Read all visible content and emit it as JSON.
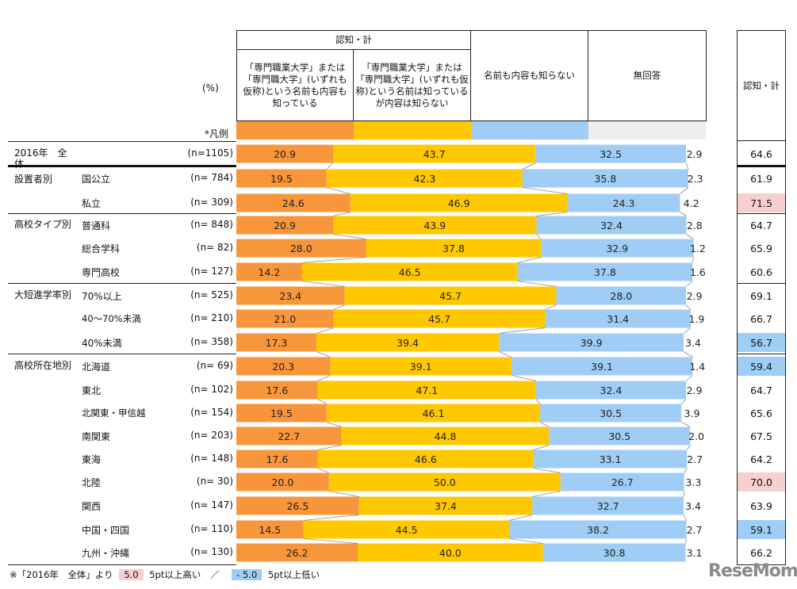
{
  "header": {
    "unit": "(%)",
    "group_label": "認知・計",
    "legend_label": "*凡例",
    "columns": [
      "「専門職業大学」または「専門職大学」(いずれも仮称)という名前も内容も知っている",
      "「専門職業大学」または「専門職大学」(いずれも仮称)という名前は知っているが内容は知らない",
      "名前も内容も知らない",
      "無回答"
    ],
    "total_label": "認知・計"
  },
  "colors": {
    "known_both": "#f7963a",
    "name_only": "#ffc800",
    "unknown": "#9fcdf6",
    "no_answer": "#ededed",
    "high": "#f7cfd0",
    "low": "#9fcdf6"
  },
  "chart_data": {
    "type": "bar",
    "stacked": true,
    "orientation": "horizontal",
    "xlim": [
      0,
      100
    ],
    "series_names": [
      "「専門職業大学」または「専門職大学」(いずれも仮称)という名前も内容も知っている",
      "「専門職業大学」または「専門職大学」(いずれも仮称)という名前は知っているが内容は知らない",
      "名前も内容も知らない",
      "無回答"
    ],
    "rows": [
      {
        "group": "2016年　全体",
        "label": "",
        "n": "(n=1105)",
        "values": [
          20.9,
          43.7,
          32.5,
          2.9
        ],
        "total": "64.6",
        "flag": ""
      },
      {
        "group": "設置者別",
        "label": "国公立",
        "n": "(n=  784)",
        "values": [
          19.5,
          42.3,
          35.8,
          2.3
        ],
        "total": "61.9",
        "flag": ""
      },
      {
        "group": "",
        "label": "私立",
        "n": "(n=  309)",
        "values": [
          24.6,
          46.9,
          24.3,
          4.2
        ],
        "total": "71.5",
        "flag": "high"
      },
      {
        "group": "高校タイプ別",
        "label": "普通科",
        "n": "(n=  848)",
        "values": [
          20.9,
          43.9,
          32.4,
          2.8
        ],
        "total": "64.7",
        "flag": ""
      },
      {
        "group": "",
        "label": "総合学科",
        "n": "(n=    82)",
        "values": [
          28.0,
          37.8,
          32.9,
          1.2
        ],
        "total": "65.9",
        "flag": ""
      },
      {
        "group": "",
        "label": "専門高校",
        "n": "(n=  127)",
        "values": [
          14.2,
          46.5,
          37.8,
          1.6
        ],
        "total": "60.6",
        "flag": ""
      },
      {
        "group": "大短進学率別",
        "label": "70%以上",
        "n": "(n=  525)",
        "values": [
          23.4,
          45.7,
          28.0,
          2.9
        ],
        "total": "69.1",
        "flag": ""
      },
      {
        "group": "",
        "label": "40～70%未満",
        "n": "(n=  210)",
        "values": [
          21.0,
          45.7,
          31.4,
          1.9
        ],
        "total": "66.7",
        "flag": ""
      },
      {
        "group": "",
        "label": "40%未満",
        "n": "(n=  358)",
        "values": [
          17.3,
          39.4,
          39.9,
          3.4
        ],
        "total": "56.7",
        "flag": "low"
      },
      {
        "group": "高校所在地別",
        "label": "北海道",
        "n": "(n=    69)",
        "values": [
          20.3,
          39.1,
          39.1,
          1.4
        ],
        "total": "59.4",
        "flag": "low"
      },
      {
        "group": "",
        "label": "東北",
        "n": "(n=  102)",
        "values": [
          17.6,
          47.1,
          32.4,
          2.9
        ],
        "total": "64.7",
        "flag": ""
      },
      {
        "group": "",
        "label": "北関東・甲信越",
        "n": "(n=  154)",
        "values": [
          19.5,
          46.1,
          30.5,
          3.9
        ],
        "total": "65.6",
        "flag": ""
      },
      {
        "group": "",
        "label": "南関東",
        "n": "(n=  203)",
        "values": [
          22.7,
          44.8,
          30.5,
          2.0
        ],
        "total": "67.5",
        "flag": ""
      },
      {
        "group": "",
        "label": "東海",
        "n": "(n=  148)",
        "values": [
          17.6,
          46.6,
          33.1,
          2.7
        ],
        "total": "64.2",
        "flag": ""
      },
      {
        "group": "",
        "label": "北陸",
        "n": "(n=    30)",
        "values": [
          20.0,
          50.0,
          26.7,
          3.3
        ],
        "total": "70.0",
        "flag": "high"
      },
      {
        "group": "",
        "label": "関西",
        "n": "(n=  147)",
        "values": [
          26.5,
          37.4,
          32.7,
          3.4
        ],
        "total": "63.9",
        "flag": ""
      },
      {
        "group": "",
        "label": "中国・四国",
        "n": "(n=  110)",
        "values": [
          14.5,
          44.5,
          38.2,
          2.7
        ],
        "total": "59.1",
        "flag": "low"
      },
      {
        "group": "",
        "label": "九州・沖縄",
        "n": "(n=  130)",
        "values": [
          26.2,
          40.0,
          30.8,
          3.1
        ],
        "total": "66.2",
        "flag": ""
      }
    ]
  },
  "footer": {
    "prefix": "※「2016年　全体」より",
    "high_sample": "5.0",
    "high_text": "5pt以上高い",
    "sep": "／",
    "low_sample": "- 5.0",
    "low_text": "5pt以上低い"
  },
  "watermark": "ReseMom"
}
